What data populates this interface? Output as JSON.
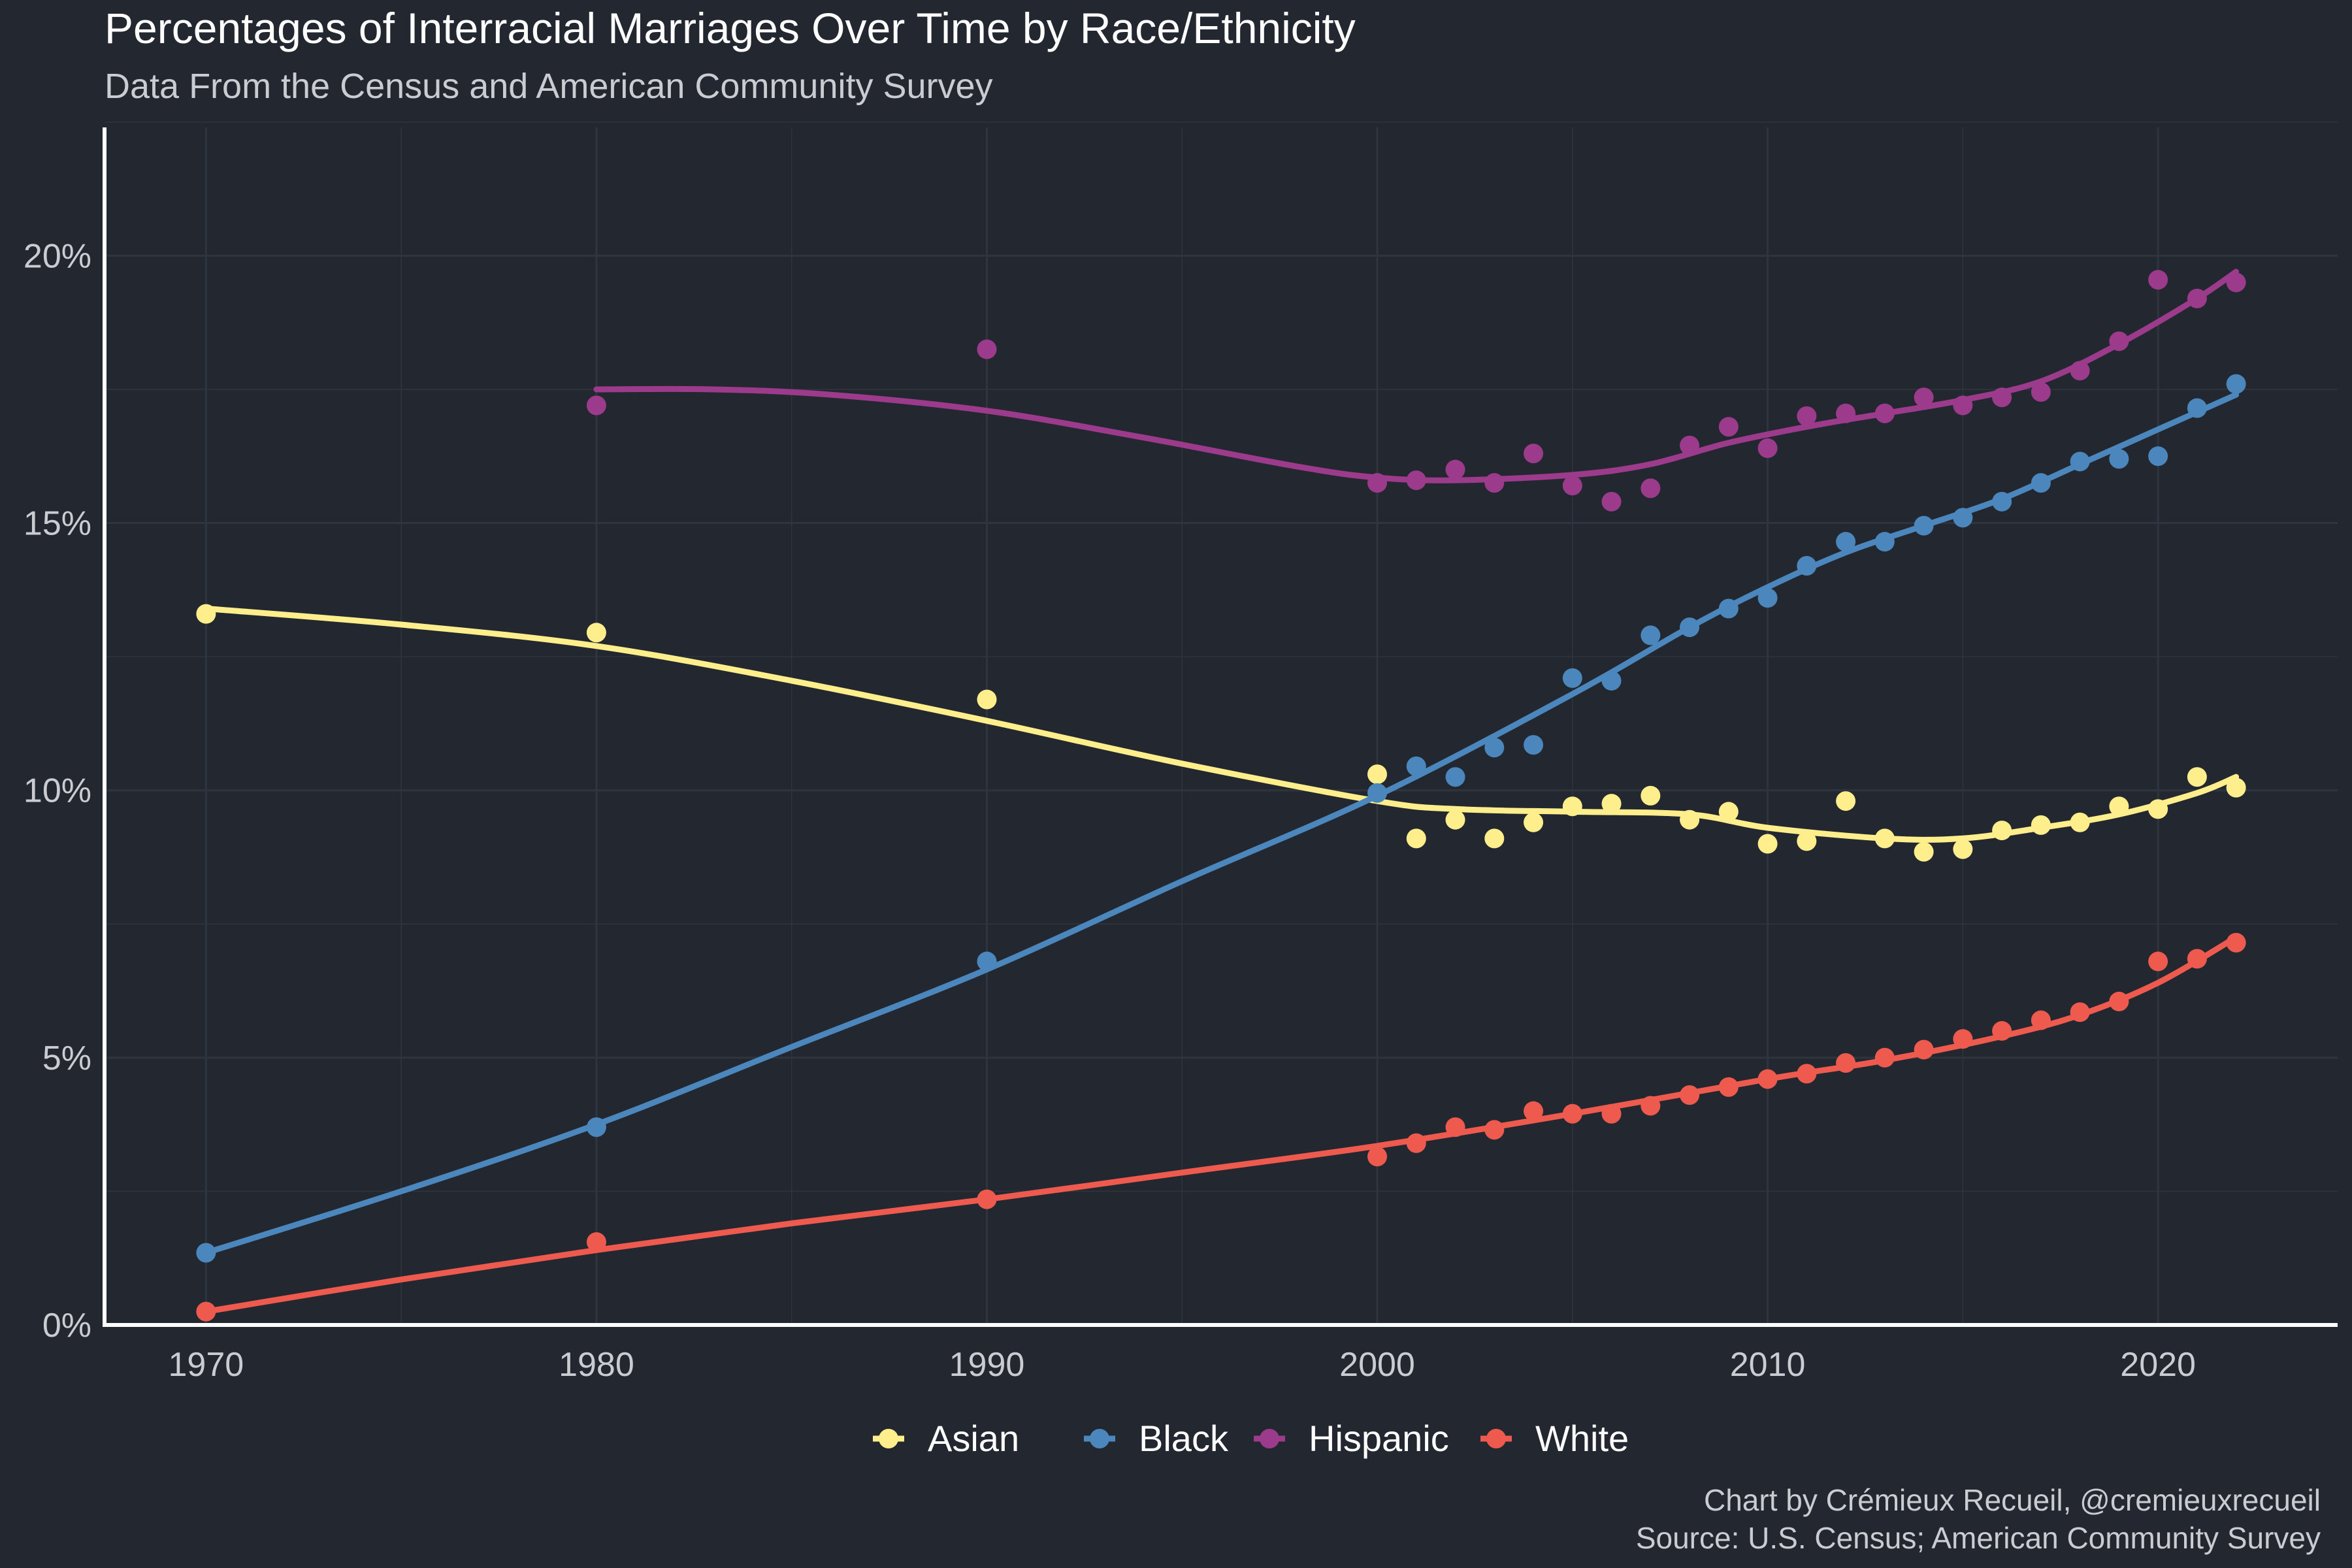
{
  "chart_data": {
    "type": "line",
    "title": "Percentages of Interracial Marriages Over Time by Race/Ethnicity",
    "subtitle": "Data From the Census and American Community Survey",
    "xlabel": "",
    "ylabel": "",
    "xlim": [
      1967.4,
      2024.6
    ],
    "ylim": [
      0,
      22.4
    ],
    "x_ticks": [
      1970,
      1980,
      1990,
      2000,
      2010,
      2020
    ],
    "y_ticks": [
      0,
      5,
      10,
      15,
      20
    ],
    "y_tick_labels": [
      "0%",
      "5%",
      "10%",
      "15%",
      "20%"
    ],
    "grid": true,
    "legend_position": "bottom",
    "style": {
      "background": "#232830",
      "grid_color": "#2f353e",
      "axis_color": "#ffffff"
    },
    "series": [
      {
        "name": "Asian",
        "color": "#ffee8c",
        "points": [
          [
            1970,
            13.3
          ],
          [
            1980,
            12.95
          ],
          [
            1990,
            11.7
          ],
          [
            2000,
            10.3
          ],
          [
            2001,
            9.1
          ],
          [
            2002,
            9.45
          ],
          [
            2003,
            9.1
          ],
          [
            2004,
            9.4
          ],
          [
            2005,
            9.7
          ],
          [
            2006,
            9.75
          ],
          [
            2007,
            9.9
          ],
          [
            2008,
            9.45
          ],
          [
            2009,
            9.6
          ],
          [
            2010,
            9.0
          ],
          [
            2011,
            9.05
          ],
          [
            2012,
            9.8
          ],
          [
            2013,
            9.1
          ],
          [
            2014,
            8.85
          ],
          [
            2015,
            8.9
          ],
          [
            2016,
            9.25
          ],
          [
            2017,
            9.35
          ],
          [
            2018,
            9.4
          ],
          [
            2019,
            9.7
          ],
          [
            2020,
            9.65
          ],
          [
            2021,
            10.25
          ],
          [
            2022,
            10.05
          ]
        ],
        "trend": [
          [
            1970,
            13.4
          ],
          [
            1975,
            13.1
          ],
          [
            1980,
            12.7
          ],
          [
            1985,
            12.05
          ],
          [
            1990,
            11.3
          ],
          [
            1995,
            10.5
          ],
          [
            2000,
            9.8
          ],
          [
            2002,
            9.65
          ],
          [
            2005,
            9.6
          ],
          [
            2008,
            9.55
          ],
          [
            2010,
            9.3
          ],
          [
            2013,
            9.1
          ],
          [
            2015,
            9.1
          ],
          [
            2017,
            9.3
          ],
          [
            2019,
            9.55
          ],
          [
            2021,
            9.95
          ],
          [
            2022,
            10.25
          ]
        ]
      },
      {
        "name": "Black",
        "color": "#4b86bd",
        "points": [
          [
            1970,
            1.35
          ],
          [
            1980,
            3.7
          ],
          [
            1990,
            6.8
          ],
          [
            2000,
            9.95
          ],
          [
            2001,
            10.45
          ],
          [
            2002,
            10.25
          ],
          [
            2003,
            10.8
          ],
          [
            2004,
            10.85
          ],
          [
            2005,
            12.1
          ],
          [
            2006,
            12.05
          ],
          [
            2007,
            12.9
          ],
          [
            2008,
            13.05
          ],
          [
            2009,
            13.4
          ],
          [
            2010,
            13.6
          ],
          [
            2011,
            14.2
          ],
          [
            2012,
            14.65
          ],
          [
            2013,
            14.65
          ],
          [
            2014,
            14.95
          ],
          [
            2015,
            15.1
          ],
          [
            2016,
            15.4
          ],
          [
            2017,
            15.75
          ],
          [
            2018,
            16.15
          ],
          [
            2019,
            16.2
          ],
          [
            2020,
            16.25
          ],
          [
            2021,
            17.15
          ],
          [
            2022,
            17.6
          ]
        ],
        "trend": [
          [
            1970,
            1.35
          ],
          [
            1975,
            2.5
          ],
          [
            1980,
            3.75
          ],
          [
            1985,
            5.2
          ],
          [
            1990,
            6.65
          ],
          [
            1995,
            8.3
          ],
          [
            2000,
            9.9
          ],
          [
            2005,
            11.8
          ],
          [
            2008,
            13.05
          ],
          [
            2010,
            13.8
          ],
          [
            2012,
            14.45
          ],
          [
            2014,
            14.95
          ],
          [
            2016,
            15.45
          ],
          [
            2018,
            16.1
          ],
          [
            2020,
            16.75
          ],
          [
            2022,
            17.4
          ]
        ]
      },
      {
        "name": "Hispanic",
        "color": "#9c3a8c",
        "points": [
          [
            1980,
            17.2
          ],
          [
            1990,
            18.25
          ],
          [
            2000,
            15.75
          ],
          [
            2001,
            15.8
          ],
          [
            2002,
            16.0
          ],
          [
            2003,
            15.75
          ],
          [
            2004,
            16.3
          ],
          [
            2005,
            15.7
          ],
          [
            2006,
            15.4
          ],
          [
            2007,
            15.65
          ],
          [
            2008,
            16.45
          ],
          [
            2009,
            16.8
          ],
          [
            2010,
            16.4
          ],
          [
            2011,
            17.0
          ],
          [
            2012,
            17.05
          ],
          [
            2013,
            17.05
          ],
          [
            2014,
            17.35
          ],
          [
            2015,
            17.2
          ],
          [
            2016,
            17.35
          ],
          [
            2017,
            17.45
          ],
          [
            2018,
            17.85
          ],
          [
            2019,
            18.4
          ],
          [
            2020,
            19.55
          ],
          [
            2021,
            19.2
          ],
          [
            2022,
            19.5
          ]
        ],
        "trend": [
          [
            1980,
            17.5
          ],
          [
            1983,
            17.5
          ],
          [
            1986,
            17.4
          ],
          [
            1990,
            17.1
          ],
          [
            1994,
            16.6
          ],
          [
            1998,
            16.05
          ],
          [
            2000,
            15.85
          ],
          [
            2002,
            15.8
          ],
          [
            2005,
            15.9
          ],
          [
            2007,
            16.1
          ],
          [
            2009,
            16.5
          ],
          [
            2011,
            16.8
          ],
          [
            2013,
            17.05
          ],
          [
            2015,
            17.3
          ],
          [
            2017,
            17.65
          ],
          [
            2019,
            18.35
          ],
          [
            2021,
            19.2
          ],
          [
            2022,
            19.7
          ]
        ]
      },
      {
        "name": "White",
        "color": "#ee5a4e",
        "points": [
          [
            1970,
            0.25
          ],
          [
            1980,
            1.55
          ],
          [
            1990,
            2.35
          ],
          [
            2000,
            3.15
          ],
          [
            2001,
            3.4
          ],
          [
            2002,
            3.7
          ],
          [
            2003,
            3.65
          ],
          [
            2004,
            4.0
          ],
          [
            2005,
            3.95
          ],
          [
            2006,
            3.95
          ],
          [
            2007,
            4.1
          ],
          [
            2008,
            4.3
          ],
          [
            2009,
            4.45
          ],
          [
            2010,
            4.6
          ],
          [
            2011,
            4.7
          ],
          [
            2012,
            4.9
          ],
          [
            2013,
            5.0
          ],
          [
            2014,
            5.15
          ],
          [
            2015,
            5.35
          ],
          [
            2016,
            5.5
          ],
          [
            2017,
            5.7
          ],
          [
            2018,
            5.85
          ],
          [
            2019,
            6.05
          ],
          [
            2020,
            6.8
          ],
          [
            2021,
            6.85
          ],
          [
            2022,
            7.15
          ]
        ],
        "trend": [
          [
            1970,
            0.25
          ],
          [
            1975,
            0.85
          ],
          [
            1980,
            1.4
          ],
          [
            1985,
            1.9
          ],
          [
            1990,
            2.35
          ],
          [
            1995,
            2.85
          ],
          [
            2000,
            3.35
          ],
          [
            2005,
            3.95
          ],
          [
            2010,
            4.6
          ],
          [
            2013,
            4.95
          ],
          [
            2016,
            5.4
          ],
          [
            2018,
            5.8
          ],
          [
            2020,
            6.4
          ],
          [
            2022,
            7.25
          ]
        ]
      }
    ],
    "caption": {
      "line1": "Chart by Crémieux Recueil, @cremieuxrecueil",
      "line2": "Source: U.S. Census; American Community Survey"
    }
  }
}
